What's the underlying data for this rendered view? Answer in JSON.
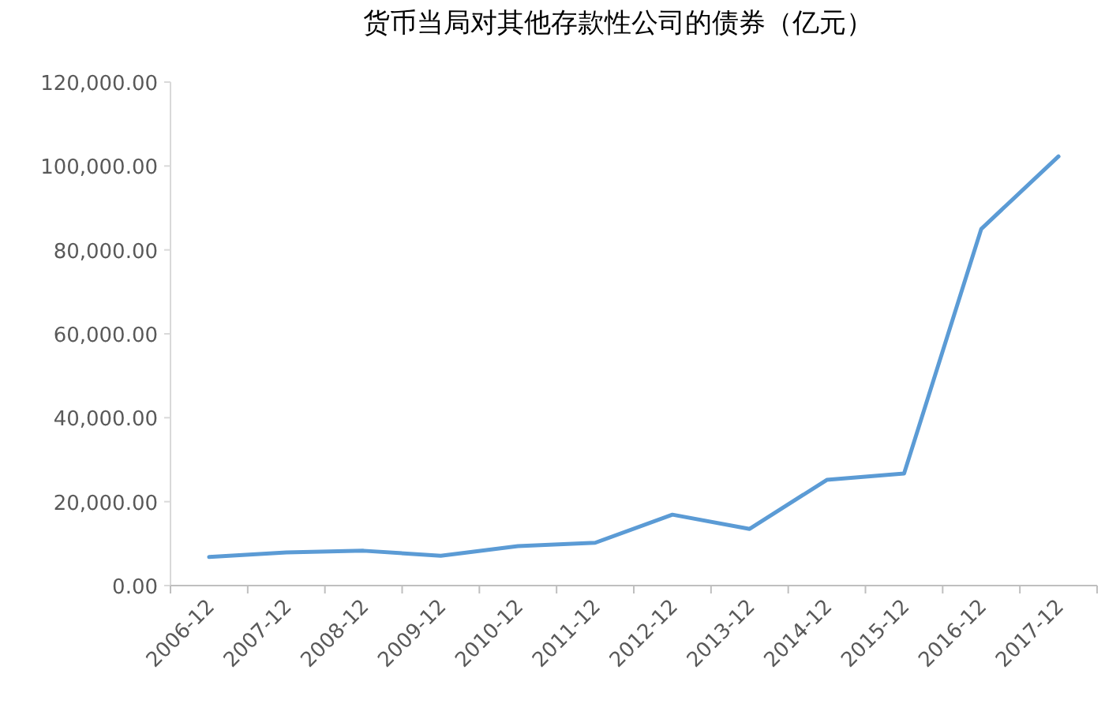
{
  "chart_data": {
    "type": "line",
    "title": "货币当局对其他存款性公司的债券（亿元）",
    "categories": [
      "2006-12",
      "2007-12",
      "2008-12",
      "2009-12",
      "2010-12",
      "2011-12",
      "2012-12",
      "2013-12",
      "2014-12",
      "2015-12",
      "2016-12",
      "2017-12"
    ],
    "series": [
      {
        "color": "#5b9bd5",
        "values": [
          6800,
          7900,
          8300,
          7100,
          9400,
          10200,
          16900,
          13500,
          25200,
          26700,
          85000,
          102300
        ]
      }
    ],
    "ylim": [
      0,
      120000
    ],
    "yticks": [
      {
        "value": 0,
        "label": "0.00"
      },
      {
        "value": 20000,
        "label": "20,000.00"
      },
      {
        "value": 40000,
        "label": "40,000.00"
      },
      {
        "value": 60000,
        "label": "60,000.00"
      },
      {
        "value": 80000,
        "label": "80,000.00"
      },
      {
        "value": 100000,
        "label": "100,000.00"
      },
      {
        "value": 120000,
        "label": "120,000.00"
      }
    ],
    "grid": false,
    "marker": "none",
    "line_style": "solid"
  }
}
